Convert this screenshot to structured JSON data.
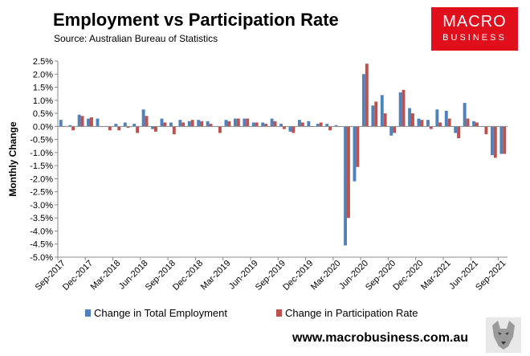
{
  "header": {
    "title": "Employment vs Participation Rate",
    "subtitle": "Source: Australian Bureau of Statistics"
  },
  "logo": {
    "line1": "MACRO",
    "line2": "BUSINESS"
  },
  "footer": {
    "url": "www.macrobusiness.com.au"
  },
  "colors": {
    "employment": "#4f81bd",
    "participation": "#c0504d",
    "axis": "#888888",
    "logo_bg": "#e10e1b"
  },
  "chart_data": {
    "type": "bar",
    "title": "Employment vs Participation Rate",
    "ylabel": "Monthly Change",
    "xlabel": "",
    "ylim": [
      -5.0,
      2.5
    ],
    "yticks": [
      "2.5%",
      "2.0%",
      "1.5%",
      "1.0%",
      "0.5%",
      "0.0%",
      "-0.5%",
      "-1.0%",
      "-1.5%",
      "-2.0%",
      "-2.5%",
      "-3.0%",
      "-3.5%",
      "-4.0%",
      "-4.5%",
      "-5.0%"
    ],
    "ytick_values": [
      2.5,
      2.0,
      1.5,
      1.0,
      0.5,
      0.0,
      -0.5,
      -1.0,
      -1.5,
      -2.0,
      -2.5,
      -3.0,
      -3.5,
      -4.0,
      -4.5,
      -5.0
    ],
    "grid": false,
    "legend_position": "bottom",
    "categories": [
      "Sep-2017",
      "Oct-2017",
      "Nov-2017",
      "Dec-2017",
      "Jan-2018",
      "Feb-2018",
      "Mar-2018",
      "Apr-2018",
      "May-2018",
      "Jun-2018",
      "Jul-2018",
      "Aug-2018",
      "Sep-2018",
      "Oct-2018",
      "Nov-2018",
      "Dec-2018",
      "Jan-2019",
      "Feb-2019",
      "Mar-2019",
      "Apr-2019",
      "May-2019",
      "Jun-2019",
      "Jul-2019",
      "Aug-2019",
      "Sep-2019",
      "Oct-2019",
      "Nov-2019",
      "Dec-2019",
      "Jan-2020",
      "Feb-2020",
      "Mar-2020",
      "Apr-2020",
      "May-2020",
      "Jun-2020",
      "Jul-2020",
      "Aug-2020",
      "Sep-2020",
      "Oct-2020",
      "Nov-2020",
      "Dec-2020",
      "Jan-2021",
      "Feb-2021",
      "Mar-2021",
      "Apr-2021",
      "May-2021",
      "Jun-2021",
      "Jul-2021",
      "Aug-2021",
      "Sep-2021"
    ],
    "xtick_labels": [
      "Sep-2017",
      "Dec-2017",
      "Mar-2018",
      "Jun-2018",
      "Sep-2018",
      "Dec-2018",
      "Mar-2019",
      "Jun-2019",
      "Sep-2019",
      "Dec-2019",
      "Mar-2020",
      "Jun-2020",
      "Sep-2020",
      "Dec-2020",
      "Mar-2021",
      "Jun-2021",
      "Sep-2021"
    ],
    "series": [
      {
        "name": "Change in Total Employment",
        "values": [
          0.25,
          0.05,
          0.45,
          0.3,
          0.3,
          0.0,
          0.1,
          0.15,
          0.1,
          0.65,
          -0.1,
          0.3,
          0.15,
          0.25,
          0.2,
          0.25,
          0.2,
          0.0,
          0.25,
          0.3,
          0.3,
          0.15,
          0.15,
          0.3,
          0.1,
          -0.2,
          0.25,
          0.2,
          0.1,
          0.1,
          0.05,
          -4.55,
          -2.1,
          2.0,
          0.8,
          1.2,
          -0.35,
          1.3,
          0.7,
          0.3,
          0.25,
          0.65,
          0.6,
          -0.25,
          0.9,
          0.2,
          0.0,
          -1.1,
          -1.05
        ]
      },
      {
        "name": "Change in Participation Rate",
        "values": [
          0.0,
          -0.15,
          0.4,
          0.35,
          0.0,
          -0.15,
          -0.15,
          -0.05,
          -0.25,
          0.4,
          -0.2,
          0.15,
          -0.3,
          0.15,
          0.25,
          0.2,
          0.1,
          -0.25,
          0.2,
          0.3,
          0.3,
          0.15,
          0.1,
          0.2,
          -0.1,
          -0.25,
          0.15,
          0.0,
          0.15,
          -0.15,
          0.0,
          -3.5,
          -1.55,
          2.4,
          0.95,
          0.5,
          -0.25,
          1.4,
          0.5,
          0.25,
          -0.1,
          0.15,
          0.3,
          -0.45,
          0.3,
          0.15,
          -0.3,
          -1.2,
          -1.05
        ]
      }
    ]
  }
}
